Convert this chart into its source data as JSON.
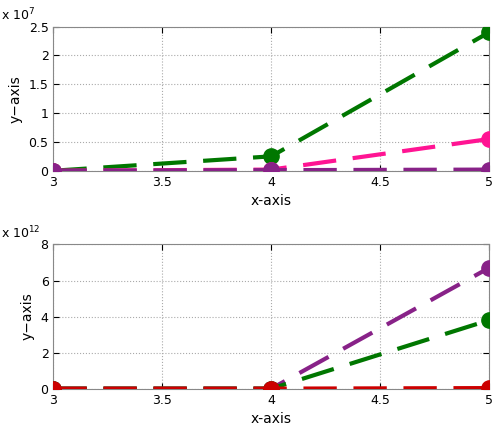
{
  "top": {
    "x": [
      3,
      4,
      5
    ],
    "alpha1": [
      0,
      2500000,
      24000000
    ],
    "fgzi": [
      0,
      200000,
      5500000
    ],
    "alpha2": [
      0,
      100000,
      200000
    ],
    "alpha1_color": "#007700",
    "fgzi_color": "#FF1493",
    "alpha2_color": "#882288",
    "ylim": [
      0,
      25000000.0
    ],
    "ytick_labels": [
      "0",
      "0.5",
      "1",
      "1.5",
      "2",
      "2.5"
    ],
    "yticks": [
      0,
      5000000,
      10000000,
      15000000,
      20000000,
      25000000
    ],
    "scale": 10000000.0,
    "exp_label": "x 10$^7$",
    "xlabel": "x-axis",
    "ylabel": "y−axis"
  },
  "bottom": {
    "x": [
      3,
      4,
      5
    ],
    "beta1": [
      0,
      0,
      6700000000000.0
    ],
    "gri": [
      0,
      0,
      3800000000000.0
    ],
    "beta2": [
      0,
      0,
      30000000000.0
    ],
    "beta1_color": "#882288",
    "gri_color": "#007700",
    "beta2_color": "#CC0000",
    "ylim": [
      0,
      8000000000000.0
    ],
    "ytick_labels": [
      "0",
      "2",
      "4",
      "6",
      "8"
    ],
    "yticks": [
      0,
      2000000000000.0,
      4000000000000.0,
      6000000000000.0,
      8000000000000.0
    ],
    "scale": 1000000000000.0,
    "exp_label": "x 10$^{12}$",
    "xlabel": "x-axis",
    "ylabel": "y−axis"
  },
  "xticks": [
    3,
    3.5,
    4,
    4.5,
    5
  ],
  "xtick_labels": [
    "3",
    "3.5",
    "4",
    "4.5",
    "5"
  ],
  "grid_color": "#aaaaaa",
  "spine_color": "#888888",
  "fig_width": 5.0,
  "fig_height": 4.33,
  "dpi": 100
}
